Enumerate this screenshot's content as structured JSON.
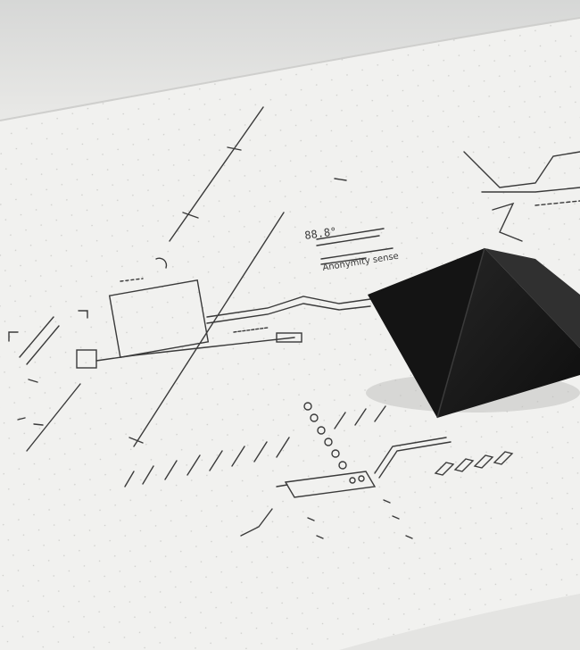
{
  "photo": {
    "subject": "notebook-with-pyramid",
    "colors": {
      "paper": "#f1f1ef",
      "page_edge": "#dcdcda",
      "ink": "#3a3a3a",
      "pyramid_dark": "#141414",
      "pyramid_light": "#2a2a2a"
    }
  },
  "sketch_labels": {
    "value_label": "88.8°",
    "caption": "Anonymity sense"
  }
}
